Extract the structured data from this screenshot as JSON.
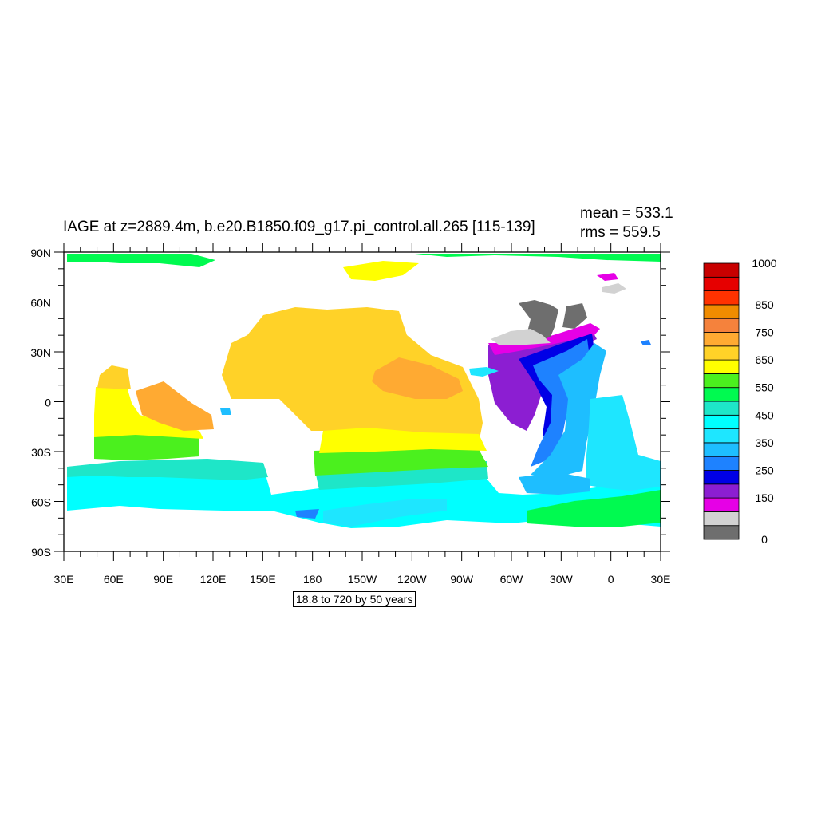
{
  "title": "IAGE at z=2889.4m, b.e20.B1850.f09_g17.pi_control.all.265 [115-139]",
  "stats": {
    "mean": "mean = 533.1",
    "rms": "rms = 559.5"
  },
  "contour_info": "18.8 to 720 by 50 years",
  "map": {
    "projection": "cylindrical equidistant, centered at 180",
    "lon_range": [
      30,
      390
    ],
    "lat_range": [
      -90,
      90
    ],
    "lat_ticks": [
      {
        "lat": 90,
        "label": "90N"
      },
      {
        "lat": 60,
        "label": "60N"
      },
      {
        "lat": 30,
        "label": "30N"
      },
      {
        "lat": 0,
        "label": "0"
      },
      {
        "lat": -30,
        "label": "30S"
      },
      {
        "lat": -60,
        "label": "60S"
      },
      {
        "lat": -90,
        "label": "90S"
      }
    ],
    "lon_ticks": [
      {
        "lon": 30,
        "label": "30E"
      },
      {
        "lon": 60,
        "label": "60E"
      },
      {
        "lon": 90,
        "label": "90E"
      },
      {
        "lon": 120,
        "label": "120E"
      },
      {
        "lon": 150,
        "label": "150E"
      },
      {
        "lon": 180,
        "label": "180"
      },
      {
        "lon": 210,
        "label": "150W"
      },
      {
        "lon": 240,
        "label": "120W"
      },
      {
        "lon": 270,
        "label": "90W"
      },
      {
        "lon": 300,
        "label": "60W"
      },
      {
        "lon": 330,
        "label": "30W"
      },
      {
        "lon": 360,
        "label": "0"
      },
      {
        "lon": 390,
        "label": "30E"
      }
    ]
  },
  "colorbar": {
    "colors": [
      "#6e6e6e",
      "#d2d2d2",
      "#e600e6",
      "#8c1ed2",
      "#0000e6",
      "#1e82ff",
      "#1ebeff",
      "#1ee6ff",
      "#00ffff",
      "#1ee6c8",
      "#00fa50",
      "#4bf01e",
      "#ffff00",
      "#ffd228",
      "#ffaa32",
      "#f5823c",
      "#f08c00",
      "#ff3200",
      "#e60000",
      "#c80000"
    ],
    "labels": [
      {
        "index": 0,
        "text": "0"
      },
      {
        "index": 3,
        "text": "150"
      },
      {
        "index": 5,
        "text": "250"
      },
      {
        "index": 7,
        "text": "350"
      },
      {
        "index": 9,
        "text": "450"
      },
      {
        "index": 11,
        "text": "550"
      },
      {
        "index": 13,
        "text": "650"
      },
      {
        "index": 15,
        "text": "750"
      },
      {
        "index": 17,
        "text": "850"
      },
      {
        "index": 20,
        "text": "1000"
      }
    ]
  }
}
